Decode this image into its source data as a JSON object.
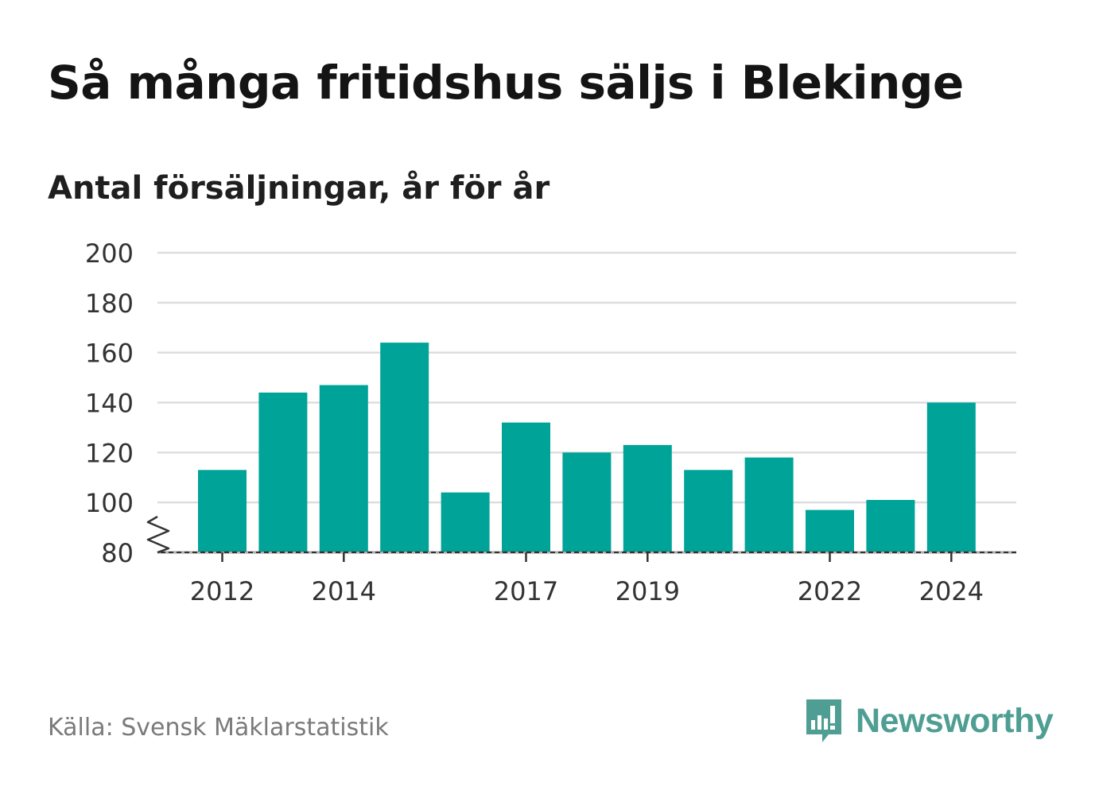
{
  "title": "Så många fritidshus säljs i Blekinge",
  "subtitle": "Antal försäljningar, år för år",
  "source": "Källa: Svensk Mäklarstatistik",
  "brand": {
    "name": "Newsworthy",
    "icon": "newsworthy-logo-icon",
    "color": "#4f9e93"
  },
  "colors": {
    "bar": "#00a398",
    "grid": "#dddddd",
    "axis": "#333333",
    "text": "#333333"
  },
  "chart_data": {
    "type": "bar",
    "title": "Så många fritidshus säljs i Blekinge",
    "subtitle": "Antal försäljningar, år för år",
    "categories": [
      "2012",
      "2013",
      "2014",
      "2015",
      "2016",
      "2017",
      "2018",
      "2019",
      "2020",
      "2021",
      "2022",
      "2023",
      "2024"
    ],
    "values": [
      113,
      144,
      147,
      164,
      104,
      132,
      120,
      123,
      113,
      118,
      97,
      101,
      140
    ],
    "x_tick_labels": [
      "2012",
      "2014",
      "2017",
      "2019",
      "2022",
      "2024"
    ],
    "y_ticks": [
      80,
      100,
      120,
      140,
      160,
      180,
      200
    ],
    "ylim": [
      80,
      200
    ],
    "axis_break": true,
    "grid": true,
    "xlabel": "",
    "ylabel": ""
  }
}
